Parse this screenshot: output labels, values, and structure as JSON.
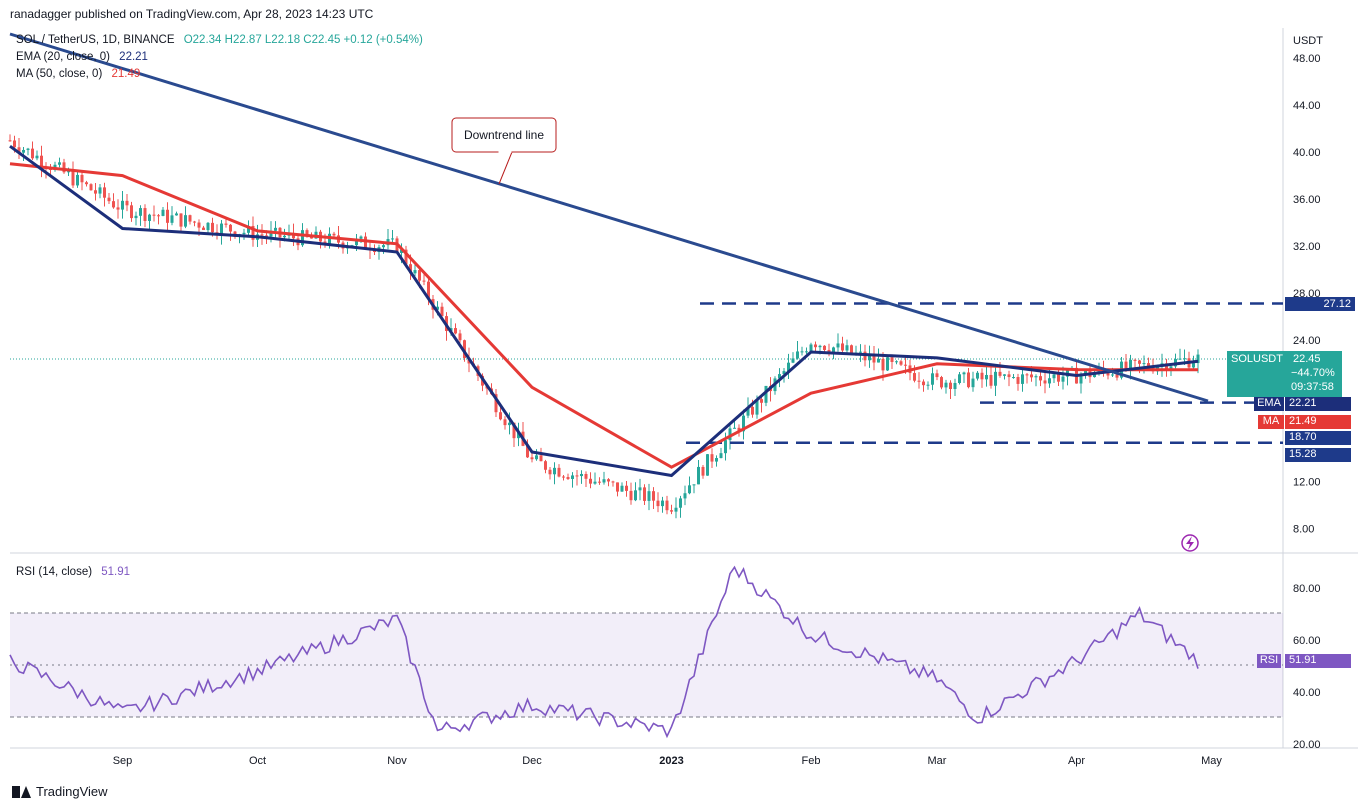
{
  "header": "ranadagger published on TradingView.com, Apr 28, 2023 14:23 UTC",
  "legend": {
    "symbol": "SOL / TetherUS, 1D, BINANCE",
    "ohlc": "O22.34  H22.87  L22.18  C22.45  +0.12 (+0.54%)",
    "ema_label": "EMA (20, close, 0)",
    "ema_value": "22.21",
    "ma_label": "MA (50, close, 0)",
    "ma_value": "21.49",
    "rsi_label": "RSI (14, close)",
    "rsi_value": "51.91"
  },
  "annotation": "Downtrend line",
  "price_axis": {
    "currency": "USDT",
    "ticks": [
      "48.00",
      "44.00",
      "40.00",
      "36.00",
      "32.00",
      "28.00",
      "24.00",
      "12.00",
      "8.00"
    ]
  },
  "rsi_axis": {
    "ticks": [
      "80.00",
      "60.00",
      "40.00",
      "20.00"
    ]
  },
  "time_axis": [
    "Sep",
    "Oct",
    "Nov",
    "Dec",
    "2023",
    "Feb",
    "Mar",
    "Apr",
    "May"
  ],
  "tags": {
    "resistance": "27.12",
    "sol_name": "SOLUSDT",
    "sol_price": "22.45",
    "sol_change": "−44.70%",
    "sol_timer": "09:37:58",
    "ema_name": "EMA",
    "ema_value": "22.21",
    "ma_name": "MA",
    "ma_value": "21.49",
    "support1": "18.70",
    "support2": "15.28",
    "rsi_name": "RSI",
    "rsi_value": "51.91"
  },
  "footer": "TradingView",
  "colors": {
    "ema": "#1c2e7a",
    "ma": "#e53935",
    "rsi": "#7e57c2",
    "up": "#26a69a",
    "down": "#ef5350",
    "level": "#1e3a8a"
  },
  "chart_data": [
    {
      "type": "line",
      "title": "SOL / TetherUS, 1D, BINANCE",
      "ylabel": "USDT",
      "ylim": [
        6,
        50
      ],
      "x_dates": [
        "2022-08-07",
        "2022-09-01",
        "2022-10-01",
        "2022-11-01",
        "2022-12-01",
        "2023-01-01",
        "2023-02-01",
        "2023-03-01",
        "2023-04-01",
        "2023-04-28"
      ],
      "series": [
        {
          "name": "SOLUSDT",
          "values": [
            41.0,
            35.2,
            33.0,
            32.0,
            13.7,
            10.0,
            24.0,
            20.5,
            21.0,
            22.45
          ]
        },
        {
          "name": "EMA",
          "values": [
            40.5,
            33.5,
            32.8,
            31.5,
            14.5,
            12.5,
            23.0,
            22.5,
            21.0,
            22.21
          ]
        },
        {
          "name": "MA",
          "values": [
            39.0,
            38.0,
            33.3,
            32.2,
            20.0,
            13.2,
            19.5,
            22.0,
            21.5,
            21.49
          ]
        }
      ],
      "levels": [
        27.12,
        18.7,
        15.28
      ]
    },
    {
      "type": "line",
      "title": "RSI (14, close)",
      "ylim": [
        20,
        90
      ],
      "bands": [
        30,
        70
      ],
      "x_dates": [
        "2022-08-07",
        "2022-09-01",
        "2022-10-01",
        "2022-11-01",
        "2022-11-10",
        "2022-12-01",
        "2023-01-01",
        "2023-01-15",
        "2023-02-01",
        "2023-03-01",
        "2023-03-10",
        "2023-04-01",
        "2023-04-15",
        "2023-04-28"
      ],
      "series": [
        {
          "name": "RSI",
          "values": [
            52,
            32,
            48,
            68,
            25,
            35,
            25,
            88,
            62,
            45,
            30,
            52,
            70,
            51.91
          ]
        }
      ]
    }
  ]
}
